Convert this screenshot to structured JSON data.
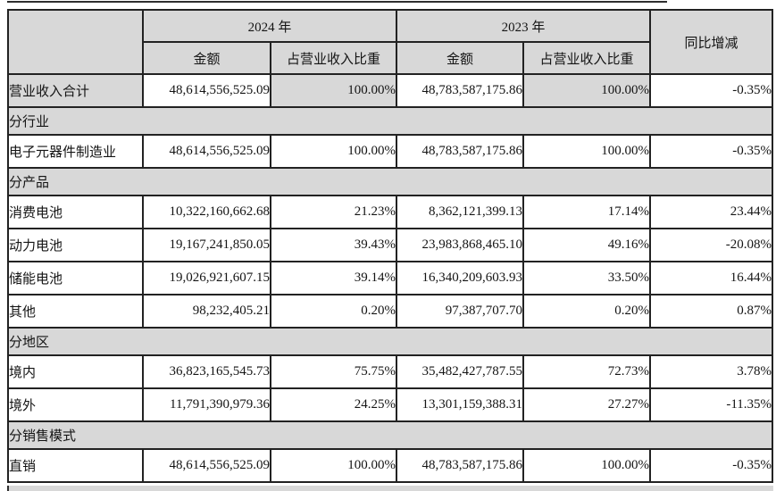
{
  "colors": {
    "table_gray": "#d8d8d8",
    "border": "#222222",
    "text": "#141414",
    "background": "#ffffff"
  },
  "table": {
    "columns": {
      "year_2024": "2024 年",
      "year_2023": "2023 年",
      "amount": "金额",
      "ratio_of_revenue": "占营业收入比重",
      "yoy_change": "同比增减"
    },
    "rows": [
      {
        "type": "data",
        "shaded": true,
        "label": "营业收入合计",
        "amount_2024": "48,614,556,525.09",
        "ratio_2024": "100.00%",
        "amount_2023": "48,783,587,175.86",
        "ratio_2023": "100.00%",
        "yoy": "-0.35%"
      },
      {
        "type": "section",
        "label": "分行业"
      },
      {
        "type": "data",
        "label": "电子元器件制造业",
        "amount_2024": "48,614,556,525.09",
        "ratio_2024": "100.00%",
        "amount_2023": "48,783,587,175.86",
        "ratio_2023": "100.00%",
        "yoy": "-0.35%"
      },
      {
        "type": "section",
        "label": "分产品"
      },
      {
        "type": "data",
        "label": "消费电池",
        "amount_2024": "10,322,160,662.68",
        "ratio_2024": "21.23%",
        "amount_2023": "8,362,121,399.13",
        "ratio_2023": "17.14%",
        "yoy": "23.44%"
      },
      {
        "type": "data",
        "label": "动力电池",
        "amount_2024": "19,167,241,850.05",
        "ratio_2024": "39.43%",
        "amount_2023": "23,983,868,465.10",
        "ratio_2023": "49.16%",
        "yoy": "-20.08%"
      },
      {
        "type": "data",
        "label": "储能电池",
        "amount_2024": "19,026,921,607.15",
        "ratio_2024": "39.14%",
        "amount_2023": "16,340,209,603.93",
        "ratio_2023": "33.50%",
        "yoy": "16.44%"
      },
      {
        "type": "data",
        "label": "其他",
        "amount_2024": "98,232,405.21",
        "ratio_2024": "0.20%",
        "amount_2023": "97,387,707.70",
        "ratio_2023": "0.20%",
        "yoy": "0.87%"
      },
      {
        "type": "section",
        "label": "分地区"
      },
      {
        "type": "data",
        "label": "境内",
        "amount_2024": "36,823,165,545.73",
        "ratio_2024": "75.75%",
        "amount_2023": "35,482,427,787.55",
        "ratio_2023": "72.73%",
        "yoy": "3.78%"
      },
      {
        "type": "data",
        "label": "境外",
        "amount_2024": "11,791,390,979.36",
        "ratio_2024": "24.25%",
        "amount_2023": "13,301,159,388.31",
        "ratio_2023": "27.27%",
        "yoy": "-11.35%"
      },
      {
        "type": "section",
        "label": "分销售模式"
      },
      {
        "type": "data",
        "label": "直销",
        "amount_2024": "48,614,556,525.09",
        "ratio_2024": "100.00%",
        "amount_2023": "48,783,587,175.86",
        "ratio_2023": "100.00%",
        "yoy": "-0.35%"
      }
    ]
  }
}
